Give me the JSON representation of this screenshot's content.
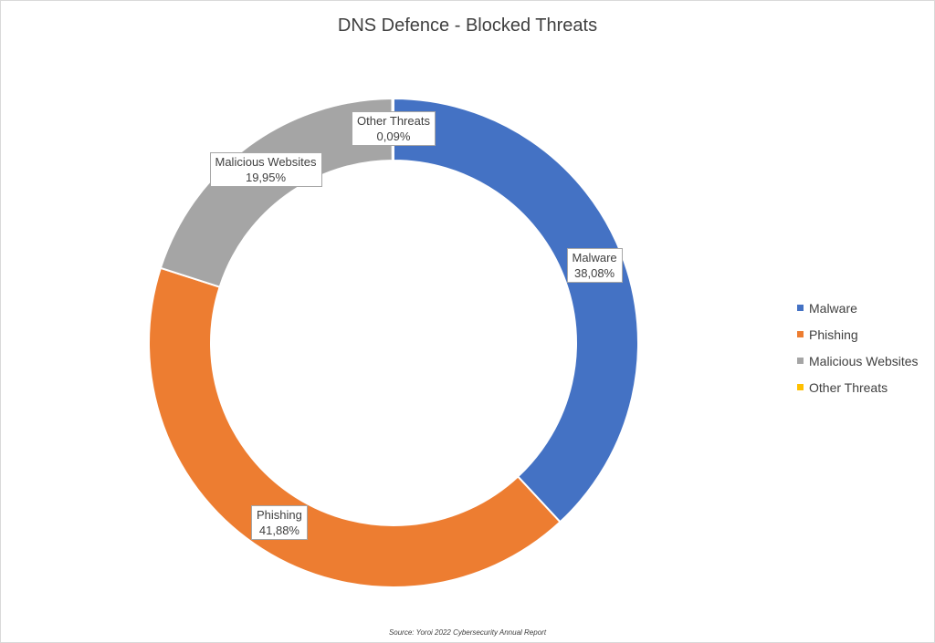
{
  "chart_data": {
    "type": "pie",
    "variant": "donut",
    "title": "DNS Defence - Blocked Threats",
    "categories": [
      "Malware",
      "Phishing",
      "Malicious Websites",
      "Other Threats"
    ],
    "values": [
      38.08,
      41.88,
      19.95,
      0.09
    ],
    "value_labels": [
      "38,08%",
      "41,88%",
      "19,95%",
      "0,09%"
    ],
    "colors": [
      "#4472c4",
      "#ed7d31",
      "#a5a5a5",
      "#ffc000"
    ],
    "legend_position": "right",
    "source": "Source: Yoroi 2022 Cybersecurity Annual Report"
  }
}
